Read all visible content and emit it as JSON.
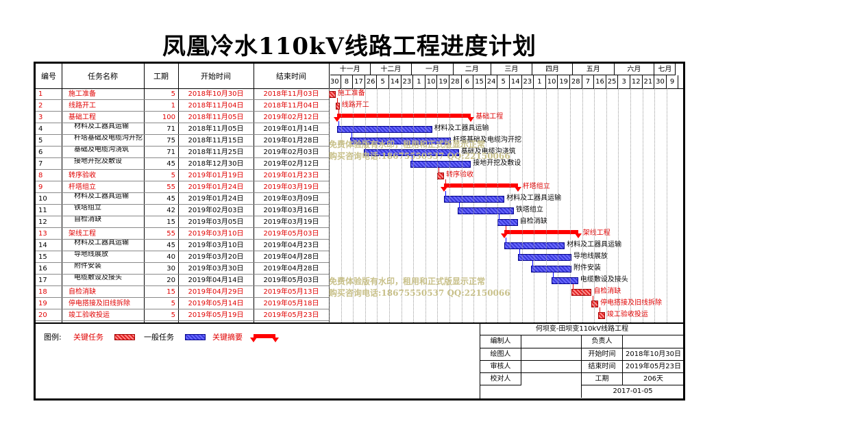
{
  "title": "凤凰冷水110kV线路工程进度计划",
  "columns": {
    "id": "编号",
    "name": "任务名称",
    "duration": "工期",
    "start": "开始时间",
    "end": "结束时间"
  },
  "months": [
    "十一月",
    "十二月",
    "一月",
    "二月",
    "三月",
    "四月",
    "五月",
    "六月",
    "七月"
  ],
  "days": [
    "30",
    "8",
    "17",
    "26",
    "5",
    "14",
    "23",
    "1",
    "10",
    "19",
    "28",
    "6",
    "15",
    "24",
    "5",
    "14",
    "23",
    "1",
    "10",
    "19",
    "28",
    "7",
    "16",
    "25",
    "3",
    "12",
    "21",
    "30",
    "9"
  ],
  "tasks": [
    {
      "id": "1",
      "name": "施工准备",
      "duration": "5",
      "start": "2018年10月30日",
      "end": "2018年11月03日",
      "type": "crit",
      "indent": false,
      "s": 0,
      "d": 5,
      "bar_label": "施工准备"
    },
    {
      "id": "2",
      "name": "线路开工",
      "duration": "1",
      "start": "2018年11月04日",
      "end": "2018年11月04日",
      "type": "crit",
      "indent": false,
      "s": 5,
      "d": 1,
      "bar_label": "线路开工"
    },
    {
      "id": "3",
      "name": "基础工程",
      "duration": "100",
      "start": "2018年11月05日",
      "end": "2019年02月12日",
      "type": "sum",
      "indent": false,
      "s": 6,
      "d": 100,
      "bar_label": "基础工程"
    },
    {
      "id": "4",
      "name": "材料及工器具运输",
      "duration": "71",
      "start": "2018年11月05日",
      "end": "2019年01月14日",
      "type": "normal",
      "indent": true,
      "s": 6,
      "d": 71,
      "bar_label": "材料及工器具运输"
    },
    {
      "id": "5",
      "name": "杆塔基础及电缆沟开挖",
      "duration": "75",
      "start": "2018年11月15日",
      "end": "2019年01月28日",
      "type": "normal",
      "indent": true,
      "s": 16,
      "d": 75,
      "bar_label": "杆塔基础及电缆沟开挖"
    },
    {
      "id": "6",
      "name": "基础及电缆沟浇筑",
      "duration": "71",
      "start": "2018年11月25日",
      "end": "2019年02月03日",
      "type": "normal",
      "indent": true,
      "s": 26,
      "d": 71,
      "bar_label": "基础及电缆沟浇筑"
    },
    {
      "id": "7",
      "name": "接地开挖及敷设",
      "duration": "45",
      "start": "2018年12月30日",
      "end": "2019年02月12日",
      "type": "normal",
      "indent": true,
      "s": 61,
      "d": 45,
      "bar_label": "接地开挖及敷设"
    },
    {
      "id": "8",
      "name": "转序验收",
      "duration": "5",
      "start": "2019年01月19日",
      "end": "2019年01月23日",
      "type": "crit",
      "indent": false,
      "s": 81,
      "d": 5,
      "bar_label": "转序验收"
    },
    {
      "id": "9",
      "name": "杆塔组立",
      "duration": "55",
      "start": "2019年01月24日",
      "end": "2019年03月19日",
      "type": "sum",
      "indent": false,
      "s": 86,
      "d": 55,
      "bar_label": "杆塔组立"
    },
    {
      "id": "10",
      "name": "材料及工器具运输",
      "duration": "45",
      "start": "2019年01月24日",
      "end": "2019年03月09日",
      "type": "normal",
      "indent": true,
      "s": 86,
      "d": 45,
      "bar_label": "材料及工器具运输"
    },
    {
      "id": "11",
      "name": "铁塔组立",
      "duration": "42",
      "start": "2019年02月03日",
      "end": "2019年03月16日",
      "type": "normal",
      "indent": true,
      "s": 96,
      "d": 42,
      "bar_label": "铁塔组立"
    },
    {
      "id": "12",
      "name": "自检消缺",
      "duration": "15",
      "start": "2019年03月05日",
      "end": "2019年03月19日",
      "type": "normal",
      "indent": true,
      "s": 126,
      "d": 15,
      "bar_label": "自检消缺"
    },
    {
      "id": "13",
      "name": "架线工程",
      "duration": "55",
      "start": "2019年03月10日",
      "end": "2019年05月03日",
      "type": "sum",
      "indent": false,
      "s": 131,
      "d": 55,
      "bar_label": "架线工程"
    },
    {
      "id": "14",
      "name": "材料及工器具运输",
      "duration": "45",
      "start": "2019年03月10日",
      "end": "2019年04月23日",
      "type": "normal",
      "indent": true,
      "s": 131,
      "d": 45,
      "bar_label": "材料及工器具运输"
    },
    {
      "id": "15",
      "name": "导地线展放",
      "duration": "40",
      "start": "2019年03月20日",
      "end": "2019年04月28日",
      "type": "normal",
      "indent": true,
      "s": 141,
      "d": 40,
      "bar_label": "导地线展放"
    },
    {
      "id": "16",
      "name": "附件安装",
      "duration": "30",
      "start": "2019年03月30日",
      "end": "2019年04月28日",
      "type": "normal",
      "indent": true,
      "s": 151,
      "d": 30,
      "bar_label": "附件安装"
    },
    {
      "id": "17",
      "name": "电缆敷设及接头",
      "duration": "20",
      "start": "2019年04月14日",
      "end": "2019年05月03日",
      "type": "normal",
      "indent": true,
      "s": 166,
      "d": 20,
      "bar_label": "电缆敷设及接头"
    },
    {
      "id": "18",
      "name": "自检消缺",
      "duration": "15",
      "start": "2019年04月29日",
      "end": "2019年05月13日",
      "type": "crit",
      "indent": false,
      "s": 181,
      "d": 15,
      "bar_label": "自检消缺"
    },
    {
      "id": "19",
      "name": "停电搭接及旧线拆除",
      "duration": "5",
      "start": "2019年05月14日",
      "end": "2019年05月18日",
      "type": "crit",
      "indent": false,
      "s": 196,
      "d": 5,
      "bar_label": "停电搭接及旧线拆除"
    },
    {
      "id": "20",
      "name": "竣工验收投运",
      "duration": "5",
      "start": "2019年05月19日",
      "end": "2019年05月23日",
      "type": "crit",
      "indent": false,
      "s": 201,
      "d": 5,
      "bar_label": "竣工验收投运"
    }
  ],
  "watermark": {
    "line1": "免费体验版有水印，租用和正式版显示正常",
    "line2": "购买咨询电话:18675550537 QQ:22150066"
  },
  "legend": {
    "label": "图例:",
    "crit": "关键任务",
    "normal": "一般任务",
    "sum": "关键摘要"
  },
  "signoff": {
    "project": "何坝变-田坝变110kV线路工程",
    "compiler": "编制人",
    "owner": "负责人",
    "drafter": "绘图人",
    "start_label": "开始时间",
    "start_value": "2018年10月30日",
    "reviewer": "审核人",
    "end_label": "结束时间",
    "end_value": "2019年05月23日",
    "proofreader": "校对人",
    "duration_label": "工期",
    "duration_value": "206天",
    "date": "2017-01-05"
  },
  "colors": {
    "critical": "#e00000",
    "normal": "#3a3ad8",
    "summary": "#ff0000",
    "watermark": "#c8c089"
  }
}
